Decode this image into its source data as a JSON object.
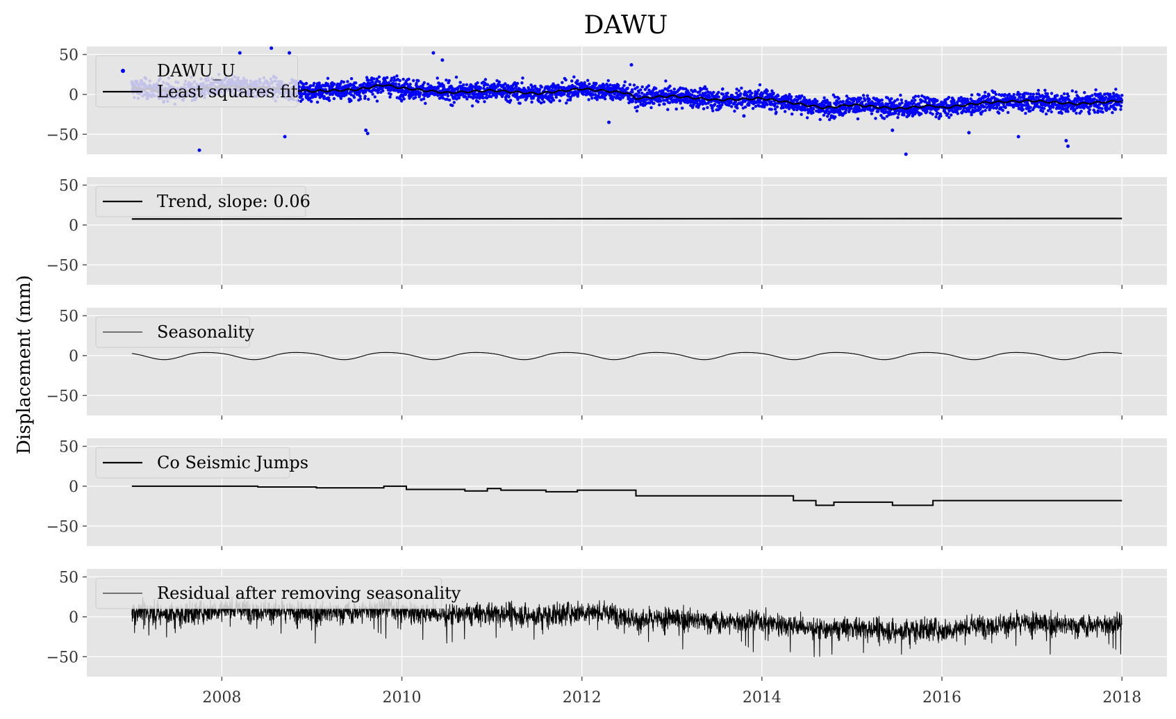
{
  "chart_data": {
    "type": "line",
    "title": "DAWU",
    "ylabel": "Displacement (mm)",
    "xlabel": "",
    "xlim": [
      2006.5,
      2018.5
    ],
    "ylim": [
      -75,
      60
    ],
    "xticks": [
      2008,
      2010,
      2012,
      2014,
      2016,
      2018
    ],
    "xtick_labels": [
      "2008",
      "2010",
      "2012",
      "2014",
      "2016",
      "2018"
    ],
    "yticks": [
      50,
      0,
      -50
    ],
    "ytick_labels": [
      "50",
      "0",
      "−50"
    ],
    "grid": true,
    "legend_position": "upper-left",
    "colors": {
      "panel_bg": "#e5e5e5",
      "grid": "#ffffff",
      "points": "#0000ff",
      "line": "#000000"
    },
    "panels": [
      {
        "name": "observations",
        "legend": [
          {
            "label": "DAWU_U",
            "style": "marker",
            "color": "#0000ff"
          },
          {
            "label": "Least squares fit",
            "style": "line",
            "color": "#000000"
          }
        ],
        "series": [
          {
            "kind": "scatter",
            "color": "#0000ff",
            "start": 2007.0,
            "end": 2018.0,
            "noise_sd": 6,
            "outliers": [
              [
                2007.75,
                -70
              ],
              [
                2008.2,
                52
              ],
              [
                2008.55,
                58
              ],
              [
                2008.75,
                52
              ],
              [
                2008.7,
                -53
              ],
              [
                2009.6,
                -45
              ],
              [
                2009.62,
                -49
              ],
              [
                2010.35,
                52
              ],
              [
                2010.45,
                43
              ],
              [
                2012.55,
                37
              ],
              [
                2012.3,
                -35
              ],
              [
                2013.8,
                -27
              ],
              [
                2015.6,
                -75
              ],
              [
                2015.45,
                -45
              ],
              [
                2017.4,
                -65
              ],
              [
                2017.38,
                -58
              ],
              [
                2016.3,
                -48
              ],
              [
                2016.85,
                -53
              ]
            ]
          },
          {
            "kind": "line",
            "name": "Least squares fit",
            "color": "#000000",
            "x": [
              2007.0,
              2007.5,
              2008.0,
              2008.5,
              2009.0,
              2009.5,
              2009.8,
              2010.0,
              2010.5,
              2011.0,
              2011.5,
              2012.0,
              2012.5,
              2012.6,
              2013.0,
              2013.5,
              2014.0,
              2014.3,
              2014.7,
              2015.0,
              2015.5,
              2015.9,
              2016.0,
              2016.5,
              2017.0,
              2017.5,
              2018.0
            ],
            "y": [
              8,
              3,
              10,
              8,
              4,
              6,
              12,
              8,
              2,
              5,
              1,
              7,
              2,
              -5,
              -2,
              -7,
              -5,
              -10,
              -17,
              -13,
              -18,
              -14,
              -17,
              -10,
              -8,
              -12,
              -8
            ]
          }
        ]
      },
      {
        "name": "trend",
        "legend": [
          {
            "label": "Trend, slope: 0.06",
            "style": "line",
            "color": "#000000"
          }
        ],
        "series": [
          {
            "kind": "line",
            "color": "#000000",
            "x": [
              2007.0,
              2018.0
            ],
            "y": [
              7.5,
              8.2
            ]
          }
        ]
      },
      {
        "name": "seasonality",
        "legend": [
          {
            "label": "Seasonality",
            "style": "thinline",
            "color": "#000000"
          }
        ],
        "series": [
          {
            "kind": "sine",
            "color": "#000000",
            "start": 2007.0,
            "end": 2018.0,
            "amplitude": 4.5,
            "peak_phase": 0.85
          }
        ]
      },
      {
        "name": "co_seismic_jumps",
        "legend": [
          {
            "label": "Co Seismic Jumps",
            "style": "line",
            "color": "#000000"
          }
        ],
        "series": [
          {
            "kind": "step",
            "color": "#000000",
            "x": [
              2007.0,
              2008.4,
              2009.05,
              2009.8,
              2010.05,
              2010.7,
              2010.95,
              2011.1,
              2011.6,
              2011.95,
              2012.6,
              2013.4,
              2014.35,
              2014.6,
              2014.8,
              2015.45,
              2015.9,
              2018.0
            ],
            "y": [
              0,
              -1,
              -2,
              0,
              -4,
              -6,
              -3,
              -5,
              -7,
              -5,
              -12,
              -12,
              -18,
              -24,
              -20,
              -24,
              -18,
              -18
            ]
          }
        ]
      },
      {
        "name": "residual",
        "legend": [
          {
            "label": "Residual after removing seasonality",
            "style": "thinline",
            "color": "#000000"
          }
        ],
        "series": [
          {
            "kind": "noisy_line",
            "color": "#000000",
            "start": 2007.0,
            "end": 2018.0,
            "noise_sd": 7,
            "baseline": "observations"
          }
        ]
      }
    ]
  }
}
